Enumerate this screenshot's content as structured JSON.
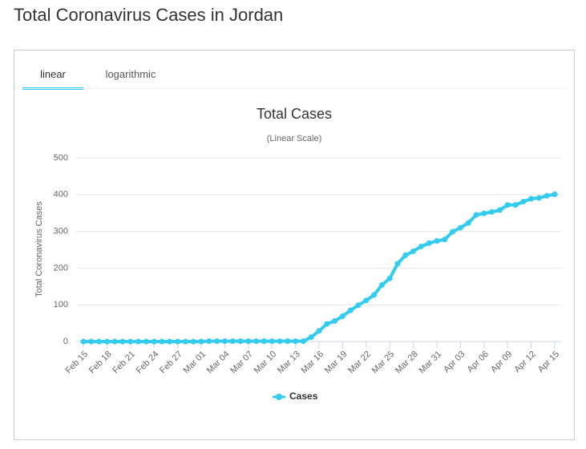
{
  "heading": "Total Coronavirus Cases in Jordan",
  "tabs": [
    "linear",
    "logarithmic"
  ],
  "chart_data": {
    "type": "line",
    "title": "Total Cases",
    "subtitle": "(Linear Scale)",
    "y_label": "Total Coronavirus Cases",
    "categories": [
      "Feb 15",
      null,
      null,
      "Feb 18",
      null,
      null,
      "Feb 21",
      null,
      null,
      "Feb 24",
      null,
      null,
      "Feb 27",
      null,
      null,
      "Mar 01",
      null,
      null,
      "Mar 04",
      null,
      null,
      "Mar 07",
      null,
      null,
      "Mar 10",
      null,
      null,
      "Mar 13",
      null,
      null,
      "Mar 16",
      null,
      null,
      "Mar 19",
      null,
      null,
      "Mar 22",
      null,
      null,
      "Mar 25",
      null,
      null,
      "Mar 28",
      null,
      null,
      "Mar 31",
      null,
      null,
      "Apr 03",
      null,
      null,
      "Apr 06",
      null,
      null,
      "Apr 09",
      null,
      null,
      "Apr 12",
      null,
      null,
      "Apr 15"
    ],
    "series": [
      {
        "name": "Cases",
        "color": "#33ccee",
        "values": [
          0,
          0,
          0,
          0,
          0,
          0,
          0,
          0,
          0,
          0,
          0,
          0,
          0,
          0,
          0,
          0,
          1,
          1,
          1,
          1,
          1,
          1,
          1,
          1,
          1,
          1,
          1,
          1,
          1,
          12,
          29,
          48,
          56,
          69,
          85,
          99,
          112,
          127,
          154,
          172,
          212,
          235,
          246,
          259,
          268,
          274,
          278,
          299,
          310,
          323,
          345,
          349,
          353,
          358,
          372,
          372,
          381,
          389,
          391,
          397,
          401
        ]
      }
    ],
    "ylim": [
      0,
      500
    ],
    "yticks": [
      0,
      100,
      200,
      300,
      400,
      500
    ],
    "grid": true
  }
}
